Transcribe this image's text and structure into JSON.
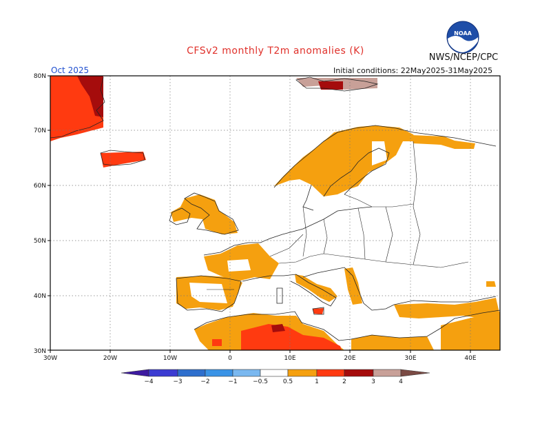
{
  "header": {
    "title": "CFSv2 monthly T2m anomalies (K)",
    "agency": "NWS/NCEP/CPC",
    "logo_text": "NOAA",
    "month": "Oct 2025",
    "initial_conditions": "Initial conditions: 22May2025-31May2025"
  },
  "map": {
    "lon_range": [
      -30,
      45
    ],
    "lat_range": [
      30,
      80
    ],
    "lon_labels": [
      "30W",
      "20W",
      "10W",
      "0",
      "10E",
      "20E",
      "30E",
      "40E"
    ],
    "lat_labels": [
      "30N",
      "40N",
      "50N",
      "60N",
      "70N",
      "80N"
    ],
    "grid": true
  },
  "colorbar": {
    "ticks": [
      "−4",
      "−3",
      "−2",
      "−1",
      "−0.5",
      "0.5",
      "1",
      "2",
      "3",
      "4"
    ],
    "colors": [
      "#3d1aa0",
      "#3c3cd2",
      "#2e6fcd",
      "#3a93e6",
      "#7ab8f0",
      "#ffffff",
      "#f5a00f",
      "#ff3a10",
      "#a50c0c",
      "#c8a098",
      "#7a4a44"
    ]
  }
}
